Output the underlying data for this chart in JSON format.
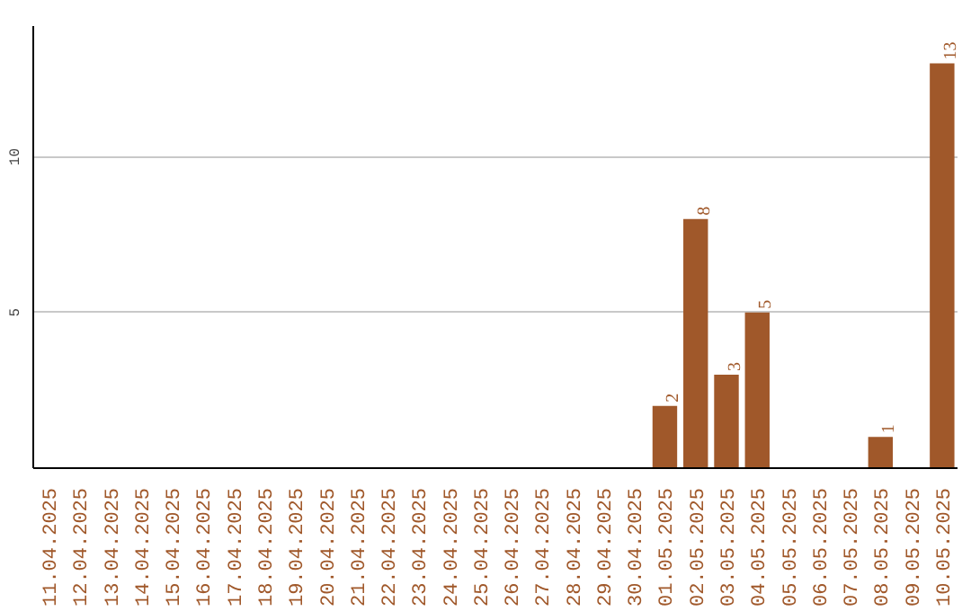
{
  "chart_data": {
    "type": "bar",
    "categories": [
      "11.04.2025",
      "12.04.2025",
      "13.04.2025",
      "14.04.2025",
      "15.04.2025",
      "16.04.2025",
      "17.04.2025",
      "18.04.2025",
      "19.04.2025",
      "20.04.2025",
      "21.04.2025",
      "22.04.2025",
      "23.04.2025",
      "24.04.2025",
      "25.04.2025",
      "26.04.2025",
      "27.04.2025",
      "28.04.2025",
      "29.04.2025",
      "30.04.2025",
      "01.05.2025",
      "02.05.2025",
      "03.05.2025",
      "04.05.2025",
      "05.05.2025",
      "06.05.2025",
      "07.05.2025",
      "08.05.2025",
      "09.05.2025",
      "10.05.2025"
    ],
    "values": [
      0,
      0,
      0,
      0,
      0,
      0,
      0,
      0,
      0,
      0,
      0,
      0,
      0,
      0,
      0,
      0,
      0,
      0,
      0,
      0,
      2,
      8,
      3,
      5,
      0,
      0,
      0,
      1,
      0,
      13
    ],
    "value_labels": [
      null,
      null,
      null,
      null,
      null,
      null,
      null,
      null,
      null,
      null,
      null,
      null,
      null,
      null,
      null,
      null,
      null,
      null,
      null,
      null,
      "2",
      "8",
      "3",
      "5",
      null,
      null,
      null,
      "1",
      null,
      "13"
    ],
    "color": "#a0582a",
    "ylim": [
      0,
      14.2
    ],
    "yticks": [
      5,
      10
    ],
    "grid": "y"
  }
}
